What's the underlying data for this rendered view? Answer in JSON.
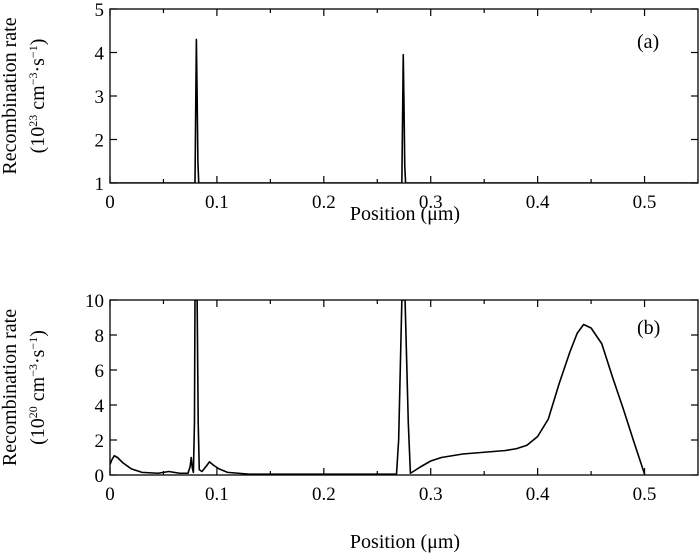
{
  "chart_data": [
    {
      "type": "line",
      "panel_label": "(a)",
      "xlabel": "Position (μm)",
      "ylabel_line1": "Recombination rate",
      "ylabel_line2_base": "(10",
      "ylabel_line2_exp": "23",
      "ylabel_line2_rest": " cm",
      "ylabel_unit_exp1": "−3",
      "ylabel_unit_mid": "·s",
      "ylabel_unit_exp2": "−1",
      "ylabel_close": ")",
      "xlim": [
        0,
        0.55
      ],
      "ylim": [
        1,
        5
      ],
      "xticks": [
        0,
        0.1,
        0.2,
        0.3,
        0.4,
        0.5
      ],
      "xtick_labels": [
        "0",
        "0.1",
        "0.2",
        "0.3",
        "0.4",
        "0.5"
      ],
      "yticks": [
        1,
        2,
        3,
        4,
        5
      ],
      "ytick_labels": [
        "1",
        "2",
        "3",
        "4",
        "5"
      ],
      "series": [
        {
          "x": [
            0,
            0.0795,
            0.0802,
            0.0808,
            0.0815,
            0.0822,
            0.083,
            0.273,
            0.2737,
            0.2743,
            0.275,
            0.2757,
            0.2765,
            0.55
          ],
          "y": [
            1,
            1,
            2.8,
            4.3,
            3.0,
            1.5,
            1,
            1,
            2.6,
            3.95,
            2.8,
            1.4,
            1,
            1
          ]
        }
      ]
    },
    {
      "type": "line",
      "panel_label": "(b)",
      "xlabel": "Position (μm)",
      "ylabel_line1": "Recombination rate",
      "ylabel_line2_base": "(10",
      "ylabel_line2_exp": "20",
      "ylabel_line2_rest": " cm",
      "ylabel_unit_exp1": "−3",
      "ylabel_unit_mid": "·s",
      "ylabel_unit_exp2": "−1",
      "ylabel_close": ")",
      "xlim": [
        0,
        0.55
      ],
      "ylim": [
        0,
        10
      ],
      "xticks": [
        0,
        0.1,
        0.2,
        0.3,
        0.4,
        0.5
      ],
      "xtick_labels": [
        "0",
        "0.1",
        "0.2",
        "0.3",
        "0.4",
        "0.5"
      ],
      "yticks": [
        0,
        2,
        4,
        6,
        8,
        10
      ],
      "ytick_labels": [
        "0",
        "2",
        "4",
        "6",
        "8",
        "10"
      ],
      "series": [
        {
          "x": [
            0.0,
            0.002,
            0.004,
            0.007,
            0.012,
            0.02,
            0.03,
            0.045,
            0.055,
            0.065,
            0.073,
            0.075,
            0.076,
            0.077,
            0.078,
            0.079,
            0.0795,
            0.0805,
            0.0815,
            0.0825,
            0.0835,
            0.086,
            0.09,
            0.093,
            0.097,
            0.102,
            0.11,
            0.13,
            0.16,
            0.2,
            0.24,
            0.26,
            0.268,
            0.27,
            0.273,
            0.276,
            0.279,
            0.281,
            0.285,
            0.29,
            0.3,
            0.31,
            0.33,
            0.35,
            0.37,
            0.38,
            0.39,
            0.4,
            0.41,
            0.42,
            0.43,
            0.437,
            0.443,
            0.45,
            0.46,
            0.47,
            0.48,
            0.49,
            0.5
          ],
          "y": [
            0.6,
            0.9,
            1.1,
            1.0,
            0.7,
            0.35,
            0.15,
            0.1,
            0.2,
            0.1,
            0.1,
            0.5,
            1.0,
            0.4,
            0.15,
            3,
            10,
            10,
            10,
            3,
            0.3,
            0.2,
            0.5,
            0.75,
            0.55,
            0.35,
            0.15,
            0.05,
            0.05,
            0.05,
            0.05,
            0.05,
            0.05,
            2,
            10,
            10,
            3,
            0.1,
            0.25,
            0.45,
            0.8,
            1.0,
            1.2,
            1.3,
            1.4,
            1.5,
            1.7,
            2.2,
            3.2,
            5.2,
            7.0,
            8.1,
            8.6,
            8.4,
            7.5,
            5.6,
            3.8,
            1.9,
            0.05
          ]
        }
      ]
    }
  ]
}
